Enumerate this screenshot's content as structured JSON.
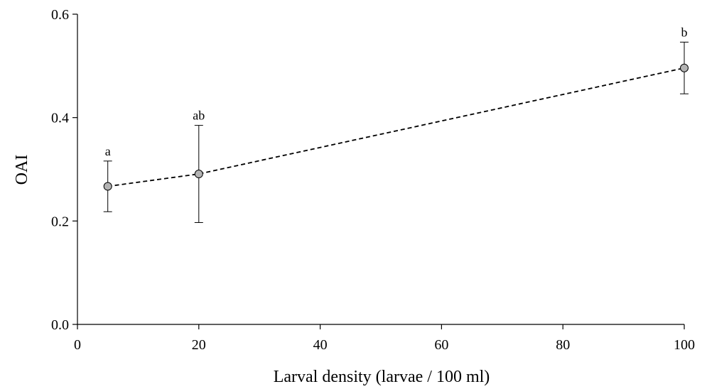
{
  "chart_data": {
    "type": "line",
    "xlabel": "Larval density (larvae / 100 ml)",
    "ylabel": "OAI",
    "xlim": [
      0,
      100
    ],
    "ylim": [
      0.0,
      0.6
    ],
    "xticks": [
      0,
      20,
      40,
      60,
      80,
      100
    ],
    "yticks": [
      0.0,
      0.2,
      0.4,
      0.6
    ],
    "ytick_labels": [
      "0.0",
      "0.2",
      "0.4",
      "0.6"
    ],
    "xtick_labels": [
      "0",
      "20",
      "40",
      "60",
      "80",
      "100"
    ],
    "grid": false,
    "line_style": "dashed",
    "marker_color": "#b3b3b3",
    "series": [
      {
        "x": [
          5,
          20,
          100
        ],
        "y": [
          0.267,
          0.291,
          0.496
        ],
        "error": [
          0.049,
          0.094,
          0.05
        ],
        "labels": [
          "a",
          "ab",
          "b"
        ]
      }
    ]
  }
}
